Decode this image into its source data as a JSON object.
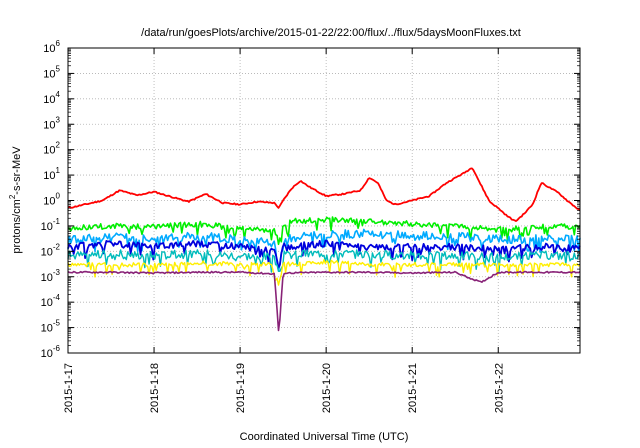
{
  "chart_data": {
    "type": "line",
    "title": "/data/run/goesPlots/archive/2015-01-22/22:00/flux/../flux/5daysMoonFluxes.txt",
    "xlabel": "Coordinated Universal Time (UTC)",
    "ylabel_parts": [
      "protons/cm",
      "2",
      "-s-sr-MeV"
    ],
    "y_scale": "log",
    "ylim_exponents": [
      -6,
      6
    ],
    "y_ticks": [
      {
        "base": "10",
        "exp": "6"
      },
      {
        "base": "10",
        "exp": "5"
      },
      {
        "base": "10",
        "exp": "4"
      },
      {
        "base": "10",
        "exp": "3"
      },
      {
        "base": "10",
        "exp": "2"
      },
      {
        "base": "10",
        "exp": "1"
      },
      {
        "base": "10",
        "exp": "0"
      },
      {
        "base": "10",
        "exp": "-1"
      },
      {
        "base": "10",
        "exp": "-2"
      },
      {
        "base": "10",
        "exp": "-3"
      },
      {
        "base": "10",
        "exp": "-4"
      },
      {
        "base": "10",
        "exp": "-5"
      },
      {
        "base": "10",
        "exp": "-6"
      }
    ],
    "x_ticks": [
      "2015-1-17",
      "2015-1-18",
      "2015-1-19",
      "2015-1-20",
      "2015-1-21",
      "2015-1-22"
    ],
    "x_range_days": [
      0,
      5.95
    ],
    "grid": true,
    "series": [
      {
        "color": "#ff0000",
        "x": [
          0,
          0.2,
          0.4,
          0.6,
          0.8,
          1.0,
          1.2,
          1.4,
          1.6,
          1.8,
          2.0,
          2.2,
          2.4,
          2.45,
          2.5,
          2.6,
          2.7,
          2.8,
          3.0,
          3.2,
          3.4,
          3.5,
          3.6,
          3.7,
          3.8,
          4.0,
          4.2,
          4.4,
          4.6,
          4.7,
          4.8,
          4.9,
          5.0,
          5.1,
          5.2,
          5.3,
          5.4,
          5.5,
          5.7,
          5.8,
          5.95
        ],
        "values": [
          0.5,
          0.7,
          1.0,
          2.5,
          1.6,
          2.2,
          1.4,
          0.9,
          1.8,
          0.8,
          0.7,
          0.9,
          0.8,
          0.5,
          1.0,
          3.0,
          6.0,
          3.5,
          1.5,
          1.8,
          2.5,
          8.0,
          5.0,
          1.0,
          0.7,
          1.0,
          1.5,
          5.0,
          12.0,
          20.0,
          4.0,
          0.9,
          0.5,
          0.25,
          0.15,
          0.3,
          0.7,
          5.0,
          2.0,
          1.0,
          0.4
        ]
      },
      {
        "color": "#00ee00",
        "x": [
          0,
          0.5,
          1.0,
          1.5,
          2.0,
          2.4,
          2.45,
          2.5,
          2.6,
          3.0,
          3.5,
          4.0,
          4.5,
          5.0,
          5.5,
          5.95
        ],
        "values": [
          0.08,
          0.1,
          0.09,
          0.12,
          0.08,
          0.07,
          0.02,
          0.1,
          0.15,
          0.18,
          0.15,
          0.12,
          0.1,
          0.07,
          0.09,
          0.1
        ]
      },
      {
        "color": "#00aaff",
        "x": [
          0,
          0.5,
          1.0,
          1.5,
          2.0,
          2.4,
          2.45,
          2.5,
          3.0,
          3.5,
          4.0,
          4.5,
          5.0,
          5.5,
          5.95
        ],
        "values": [
          0.03,
          0.04,
          0.03,
          0.04,
          0.03,
          0.02,
          0.002,
          0.03,
          0.05,
          0.05,
          0.04,
          0.04,
          0.03,
          0.03,
          0.03
        ]
      },
      {
        "color": "#0000dd",
        "x": [
          0,
          0.5,
          1.0,
          1.5,
          2.0,
          2.4,
          2.45,
          2.5,
          3.0,
          3.5,
          4.0,
          4.5,
          5.0,
          5.5,
          5.95
        ],
        "values": [
          0.015,
          0.02,
          0.015,
          0.02,
          0.015,
          0.012,
          0.002,
          0.015,
          0.02,
          0.015,
          0.015,
          0.015,
          0.012,
          0.015,
          0.015
        ]
      },
      {
        "color": "#00bbbb",
        "x": [
          0,
          0.5,
          1.0,
          1.5,
          2.0,
          2.4,
          2.45,
          2.5,
          3.0,
          3.5,
          4.0,
          4.5,
          5.0,
          5.5,
          5.95
        ],
        "values": [
          0.007,
          0.008,
          0.007,
          0.008,
          0.007,
          0.006,
          0.001,
          0.007,
          0.009,
          0.008,
          0.007,
          0.007,
          0.006,
          0.007,
          0.007
        ]
      },
      {
        "color": "#ffee00",
        "x": [
          0,
          0.5,
          1.0,
          1.5,
          2.0,
          2.4,
          2.45,
          2.5,
          3.0,
          3.5,
          4.0,
          4.5,
          5.0,
          5.5,
          5.95
        ],
        "values": [
          0.003,
          0.003,
          0.003,
          0.0035,
          0.003,
          0.003,
          0.0005,
          0.003,
          0.004,
          0.003,
          0.003,
          0.003,
          0.003,
          0.003,
          0.003
        ]
      },
      {
        "color": "#882277",
        "x": [
          0,
          0.5,
          1.0,
          1.5,
          2.0,
          2.4,
          2.45,
          2.5,
          3.0,
          3.5,
          4.0,
          4.5,
          4.8,
          5.0,
          5.5,
          5.95
        ],
        "values": [
          0.0015,
          0.0015,
          0.0014,
          0.0015,
          0.0015,
          0.0013,
          5e-06,
          0.0014,
          0.0015,
          0.0015,
          0.0014,
          0.0015,
          0.0006,
          0.0015,
          0.0015,
          0.0015
        ]
      }
    ]
  }
}
